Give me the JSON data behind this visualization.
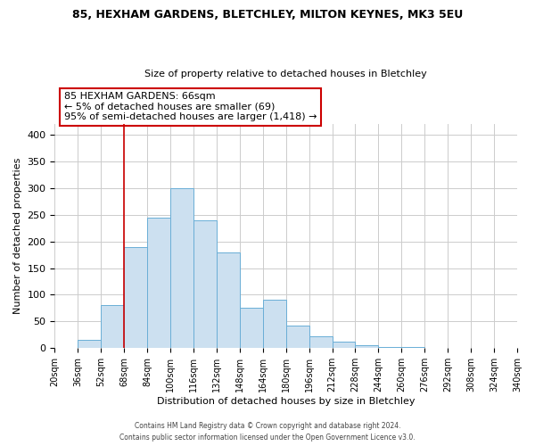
{
  "title": "85, HEXHAM GARDENS, BLETCHLEY, MILTON KEYNES, MK3 5EU",
  "subtitle": "Size of property relative to detached houses in Bletchley",
  "xlabel": "Distribution of detached houses by size in Bletchley",
  "ylabel": "Number of detached properties",
  "footer_line1": "Contains HM Land Registry data © Crown copyright and database right 2024.",
  "footer_line2": "Contains public sector information licensed under the Open Government Licence v3.0.",
  "bar_edges": [
    20,
    36,
    52,
    68,
    84,
    100,
    116,
    132,
    148,
    164,
    180,
    196,
    212,
    228,
    244,
    260,
    276,
    292,
    308,
    324,
    340
  ],
  "bar_heights": [
    0,
    15,
    80,
    190,
    245,
    300,
    240,
    180,
    75,
    90,
    42,
    23,
    12,
    5,
    3,
    2,
    1,
    1,
    0,
    0
  ],
  "bar_color": "#cce0f0",
  "bar_edgecolor": "#6aaed6",
  "annotation_line1": "85 HEXHAM GARDENS: 66sqm",
  "annotation_line2": "← 5% of detached houses are smaller (69)",
  "annotation_line3": "95% of semi-detached houses are larger (1,418) →",
  "vline_x": 68,
  "vline_color": "#cc0000",
  "ylim": [
    0,
    420
  ],
  "yticks": [
    0,
    50,
    100,
    150,
    200,
    250,
    300,
    350,
    400
  ],
  "tick_labels": [
    "20sqm",
    "36sqm",
    "52sqm",
    "68sqm",
    "84sqm",
    "100sqm",
    "116sqm",
    "132sqm",
    "148sqm",
    "164sqm",
    "180sqm",
    "196sqm",
    "212sqm",
    "228sqm",
    "244sqm",
    "260sqm",
    "276sqm",
    "292sqm",
    "308sqm",
    "324sqm",
    "340sqm"
  ],
  "background_color": "#ffffff",
  "grid_color": "#cccccc"
}
